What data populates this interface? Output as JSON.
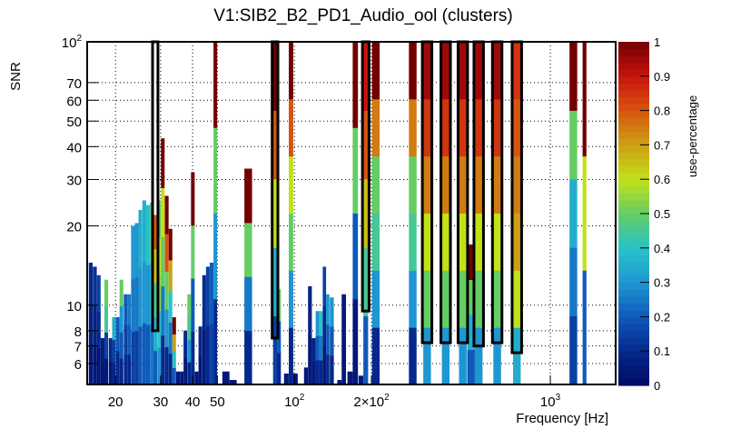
{
  "chart_data": {
    "type": "heatmap",
    "title": "V1:SIB2_B2_PD1_Audio_ool (clusters)",
    "xlabel": "Frequency [Hz]",
    "ylabel": "SNR",
    "zlabel": "use-percentage",
    "xscale": "log",
    "yscale": "log",
    "xlim": [
      15.5,
      1800
    ],
    "ylim": [
      5,
      100
    ],
    "zlim": [
      0,
      1
    ],
    "grid": true,
    "colormap": "rainbow (dark blue → cyan → green → yellow → red → dark red)",
    "x_ticks": [
      {
        "value": 20,
        "label": "20"
      },
      {
        "value": 30,
        "label": "30"
      },
      {
        "value": 40,
        "label": "40"
      },
      {
        "value": 50,
        "label": "50"
      },
      {
        "value": 100,
        "label": "10",
        "sup": "2"
      },
      {
        "value": 200,
        "label": "2×10",
        "sup": "2"
      },
      {
        "value": 1000,
        "label": "10",
        "sup": "3"
      }
    ],
    "y_ticks": [
      {
        "value": 6,
        "label": "6"
      },
      {
        "value": 7,
        "label": "7"
      },
      {
        "value": 8,
        "label": "8"
      },
      {
        "value": 10,
        "label": "10"
      },
      {
        "value": 20,
        "label": "20"
      },
      {
        "value": 30,
        "label": "30"
      },
      {
        "value": 40,
        "label": "40"
      },
      {
        "value": 50,
        "label": "50"
      },
      {
        "value": 60,
        "label": "60"
      },
      {
        "value": 70,
        "label": "70"
      },
      {
        "value": 100,
        "label": "10",
        "sup": "2"
      }
    ],
    "z_ticks": [
      "0",
      "0.1",
      "0.2",
      "0.3",
      "0.4",
      "0.5",
      "0.6",
      "0.7",
      "0.8",
      "0.9",
      "1"
    ],
    "columns": [
      {
        "f": 16.0,
        "top": 14.5,
        "z": [
          0.05,
          0.08,
          0.1
        ]
      },
      {
        "f": 16.6,
        "top": 14.0,
        "z": [
          0.05,
          0.08,
          0.12
        ]
      },
      {
        "f": 17.2,
        "top": 13.0,
        "z": [
          0.04,
          0.1,
          0.15
        ]
      },
      {
        "f": 17.8,
        "top": 7.5,
        "z": [
          0.04,
          0.06
        ]
      },
      {
        "f": 18.4,
        "top": 12.5,
        "z": [
          0.05,
          0.15,
          0.45,
          0.5
        ]
      },
      {
        "f": 19.1,
        "top": 7.5,
        "z": [
          0.05,
          0.1
        ]
      },
      {
        "f": 19.7,
        "top": 9.0,
        "z": [
          0.08,
          0.15,
          0.35
        ]
      },
      {
        "f": 20.4,
        "top": 9.0,
        "z": [
          0.1,
          0.2
        ]
      },
      {
        "f": 21.1,
        "top": 12.5,
        "z": [
          0.1,
          0.2,
          0.3,
          0.5
        ]
      },
      {
        "f": 21.9,
        "top": 11.0,
        "z": [
          0.1,
          0.15,
          0.2
        ]
      },
      {
        "f": 22.6,
        "top": 11.0,
        "z": [
          0.1,
          0.2,
          0.25
        ]
      },
      {
        "f": 23.4,
        "top": 20.0,
        "z": [
          0.15,
          0.25,
          0.3
        ]
      },
      {
        "f": 24.2,
        "top": 20.5,
        "z": [
          0.15,
          0.25,
          0.3
        ]
      },
      {
        "f": 25.0,
        "top": 23.0,
        "z": [
          0.2,
          0.3,
          0.35
        ]
      },
      {
        "f": 25.9,
        "top": 25.0,
        "z": [
          0.2,
          0.3,
          0.35
        ]
      },
      {
        "f": 26.8,
        "top": 24.0,
        "z": [
          0.2,
          0.3,
          0.4
        ]
      },
      {
        "f": 27.7,
        "top": 24.5,
        "z": [
          0.25,
          0.35,
          0.45
        ]
      },
      {
        "f": 28.6,
        "top": 22.0,
        "z": [
          0.2,
          0.35,
          0.45,
          0.65,
          0.8
        ],
        "highlight_from": 8
      },
      {
        "f": 29.6,
        "top": 25.0,
        "z": [
          0.3,
          0.4,
          0.55,
          0.6,
          0.5
        ]
      },
      {
        "f": 30.6,
        "top": 43.0,
        "z": [
          0.1,
          0.25,
          0.5,
          0.6,
          1.0
        ]
      },
      {
        "f": 31.7,
        "top": 26.0,
        "z": [
          0.1,
          0.3,
          0.5,
          0.8,
          1.0
        ]
      },
      {
        "f": 32.8,
        "top": 19.5,
        "z": [
          0.1,
          0.25,
          0.4,
          0.7,
          1.0
        ]
      },
      {
        "f": 33.9,
        "top": 9.0,
        "z": [
          0.2,
          0.4,
          0.7,
          1.0
        ]
      },
      {
        "f": 35.1,
        "top": 5.6,
        "z": [
          0.05
        ]
      },
      {
        "f": 36.3,
        "top": 5.6,
        "z": [
          0.05
        ]
      },
      {
        "f": 37.5,
        "top": 8.0,
        "z": [
          0.05,
          0.1
        ]
      },
      {
        "f": 38.8,
        "top": 11.0,
        "z": [
          0.1,
          0.3,
          0.45,
          0.5
        ]
      },
      {
        "f": 40.1,
        "top": 32.0,
        "z": [
          0.1,
          0.2,
          0.5,
          1.0
        ]
      },
      {
        "f": 41.5,
        "top": 5.6,
        "z": [
          0.05
        ]
      },
      {
        "f": 42.9,
        "top": 8.3,
        "z": [
          0.05,
          0.1
        ]
      },
      {
        "f": 44.4,
        "top": 13.0,
        "z": [
          0.05,
          0.1
        ]
      },
      {
        "f": 45.9,
        "top": 14.0,
        "z": [
          0.1,
          0.15
        ]
      },
      {
        "f": 47.5,
        "top": 14.5,
        "z": [
          0.15,
          0.2
        ]
      },
      {
        "f": 49.1,
        "top": 100.0,
        "z": [
          0.1,
          0.3,
          0.5,
          1.0
        ]
      },
      {
        "f": 54.0,
        "top": 5.6,
        "z": [
          0.05
        ]
      },
      {
        "f": 57.6,
        "top": 5.2,
        "z": [
          0.05
        ]
      },
      {
        "f": 66.0,
        "top": 33.0,
        "z": [
          0.1,
          0.25,
          0.5,
          1.0
        ]
      },
      {
        "f": 84.0,
        "top": 100.0,
        "z": [
          0.15,
          0.35,
          0.6,
          0.8,
          1.0
        ],
        "highlight_from": 7.5
      },
      {
        "f": 87.0,
        "top": 11.5,
        "z": [
          0.1,
          0.2,
          0.5
        ]
      },
      {
        "f": 93.0,
        "top": 5.5,
        "z": [
          0.05
        ]
      },
      {
        "f": 97.0,
        "top": 100.0,
        "z": [
          0.1,
          0.3,
          0.5,
          0.6,
          0.8,
          1.0
        ]
      },
      {
        "f": 101.0,
        "top": 5.5,
        "z": [
          0.05
        ]
      },
      {
        "f": 111.0,
        "top": 5.8,
        "z": [
          0.05
        ]
      },
      {
        "f": 115.0,
        "top": 11.8,
        "z": [
          0.05,
          0.08
        ]
      },
      {
        "f": 119.0,
        "top": 7.5,
        "z": [
          0.05,
          0.08
        ]
      },
      {
        "f": 123.0,
        "top": 9.5,
        "z": [
          0.1,
          0.2,
          0.3
        ]
      },
      {
        "f": 127.0,
        "top": 9.5,
        "z": [
          0.1,
          0.25,
          0.4
        ]
      },
      {
        "f": 131.0,
        "top": 14.0,
        "z": [
          0.05,
          0.1,
          0.15
        ]
      },
      {
        "f": 135.0,
        "top": 11.0,
        "z": [
          0.1,
          0.2,
          0.3
        ]
      },
      {
        "f": 140.0,
        "top": 10.7,
        "z": [
          0.1,
          0.2,
          0.3
        ]
      },
      {
        "f": 150.0,
        "top": 5.2,
        "z": [
          0.05
        ]
      },
      {
        "f": 156.0,
        "top": 11.0,
        "z": [
          0.05,
          0.06
        ]
      },
      {
        "f": 165.0,
        "top": 5.6,
        "z": [
          0.05
        ]
      },
      {
        "f": 173.0,
        "top": 100.0,
        "z": [
          0.05,
          0.2,
          0.5,
          1.0
        ]
      },
      {
        "f": 182.0,
        "top": 5.4,
        "z": [
          0.05
        ]
      },
      {
        "f": 190.0,
        "top": 100.0,
        "z": [
          0.2,
          0.45,
          0.65,
          0.8,
          0.9
        ],
        "highlight_from": 9.5
      },
      {
        "f": 208.0,
        "top": 100.0,
        "z": [
          0.1,
          0.3,
          0.45,
          0.5,
          0.75,
          1.0
        ]
      },
      {
        "f": 290.0,
        "top": 100.0,
        "z": [
          0.1,
          0.3,
          0.45,
          0.5,
          0.75,
          1.0
        ]
      },
      {
        "f": 330.0,
        "top": 100.0,
        "z": [
          0.3,
          0.5,
          0.6,
          0.75,
          0.85,
          0.95
        ],
        "highlight_from": 7.2
      },
      {
        "f": 390.0,
        "top": 100.0,
        "z": [
          0.3,
          0.5,
          0.6,
          0.75,
          0.85,
          0.95
        ],
        "highlight_from": 7.2
      },
      {
        "f": 455.0,
        "top": 100.0,
        "z": [
          0.3,
          0.5,
          0.6,
          0.75,
          0.85,
          0.95
        ],
        "highlight_from": 7.2
      },
      {
        "f": 490.0,
        "top": 17.0,
        "z": [
          0.2,
          0.35,
          0.5,
          1.0
        ]
      },
      {
        "f": 525.0,
        "top": 100.0,
        "z": [
          0.3,
          0.5,
          0.6,
          0.75,
          0.85,
          0.95
        ],
        "highlight_from": 7.0
      },
      {
        "f": 620.0,
        "top": 100.0,
        "z": [
          0.3,
          0.5,
          0.6,
          0.75,
          0.85,
          0.95
        ],
        "highlight_from": 7.2
      },
      {
        "f": 740.0,
        "top": 100.0,
        "z": [
          0.35,
          0.6,
          0.7,
          0.75,
          0.8,
          0.85
        ],
        "highlight_from": 6.6
      },
      {
        "f": 1230.0,
        "top": 100.0,
        "z": [
          0.15,
          0.25,
          0.35,
          0.5,
          1.0
        ]
      },
      {
        "f": 1360.0,
        "top": 100.0,
        "z": [
          0.2,
          0.6,
          1.0
        ]
      }
    ]
  }
}
